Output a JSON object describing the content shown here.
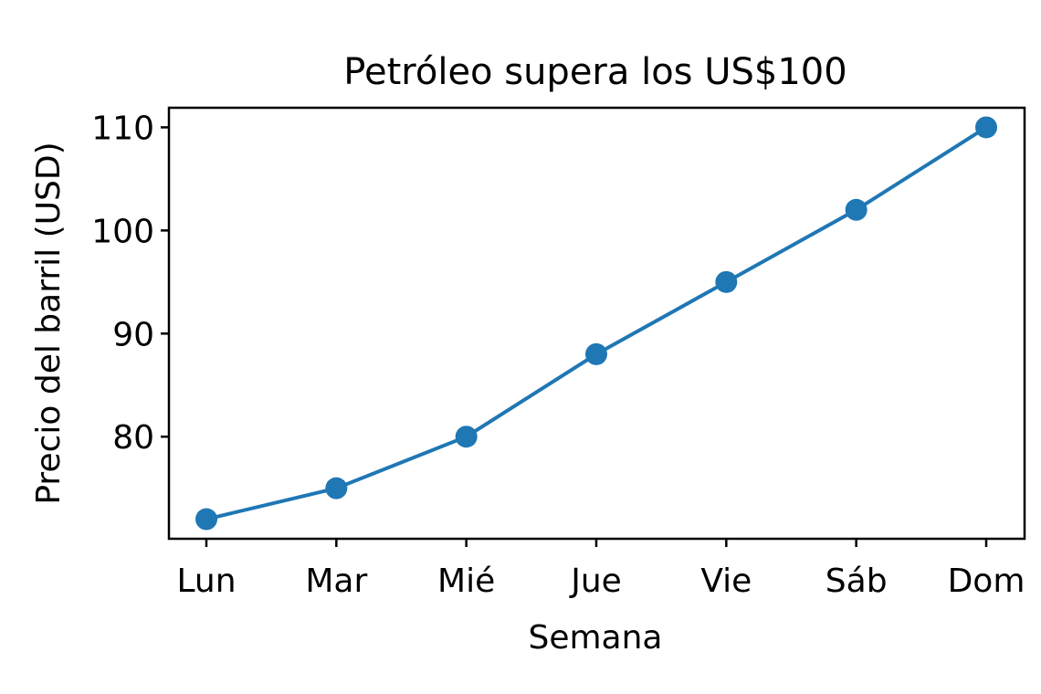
{
  "chart_data": {
    "type": "line",
    "title": "Petróleo supera los US$100",
    "xlabel": "Semana",
    "ylabel": "Precio del barril (USD)",
    "categories": [
      "Lun",
      "Mar",
      "Mié",
      "Jue",
      "Vie",
      "Sáb",
      "Dom"
    ],
    "series": [
      {
        "values": [
          72,
          75,
          80,
          88,
          95,
          102,
          110
        ]
      }
    ],
    "yticks": [
      80,
      90,
      100,
      110
    ],
    "ylim": [
      70.1,
      111.9
    ],
    "grid": false,
    "marker": "circle",
    "color": "#1f77b4"
  }
}
